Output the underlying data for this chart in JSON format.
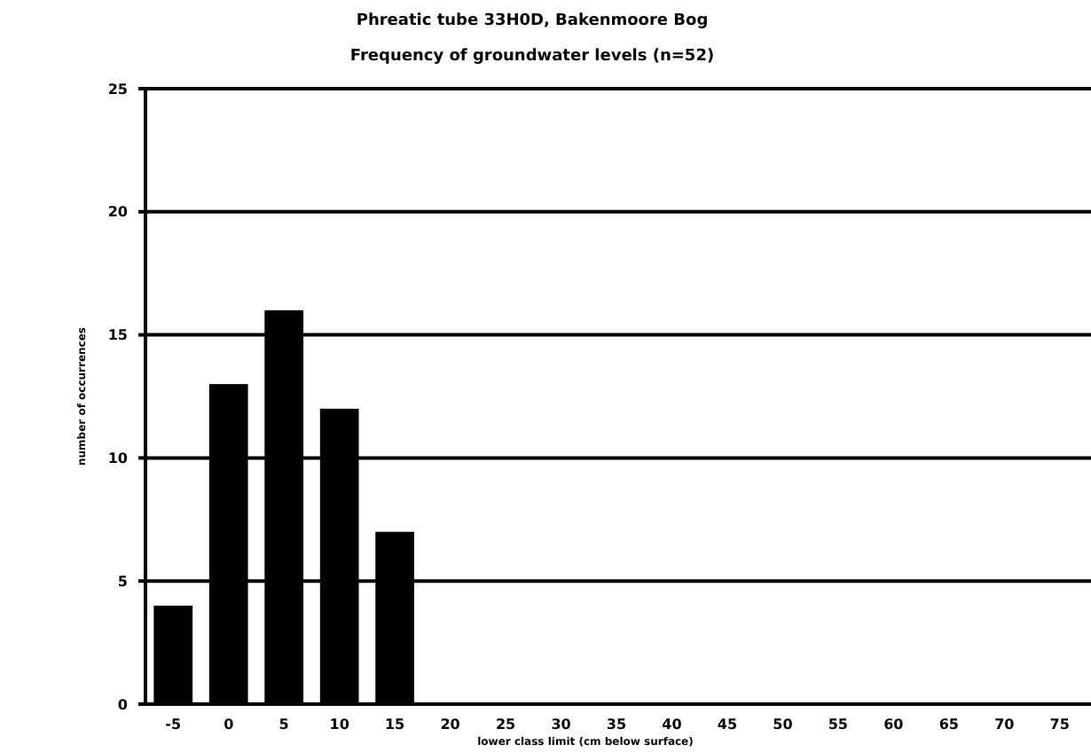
{
  "chart_data": {
    "type": "bar",
    "title": "Phreatic tube 33H0D, Bakenmoore Bog",
    "subtitle": "Frequency of groundwater levels (n=52)",
    "xlabel": "lower class limit (cm below surface)",
    "ylabel": "number of occurrences",
    "categories": [
      "-5",
      "0",
      "5",
      "10",
      "15",
      "20",
      "25",
      "30",
      "35",
      "40",
      "45",
      "50",
      "55",
      "60",
      "65",
      "70",
      "75"
    ],
    "values": [
      4,
      13,
      16,
      12,
      7,
      0,
      0,
      0,
      0,
      0,
      0,
      0,
      0,
      0,
      0,
      0,
      0
    ],
    "color": "#000000",
    "ylim": [
      0,
      25
    ],
    "yticks": [
      0,
      5,
      10,
      15,
      20,
      25
    ],
    "grid": "y"
  }
}
